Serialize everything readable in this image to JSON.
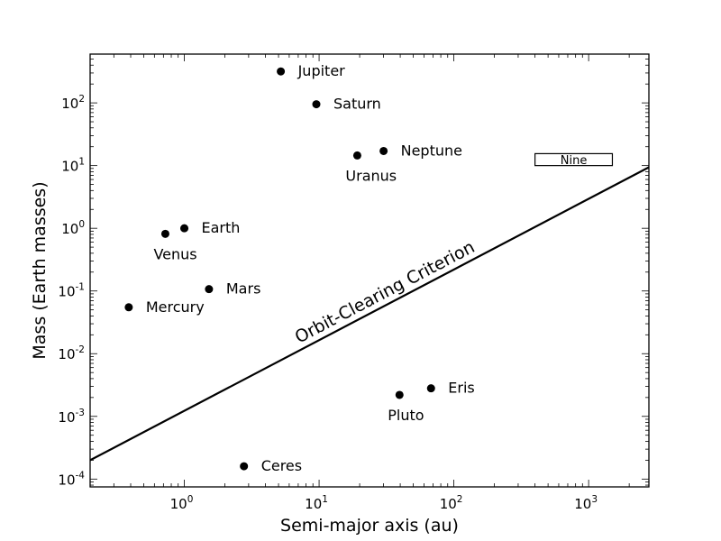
{
  "chart_data": {
    "type": "scatter",
    "xlabel": "Semi-major axis (au)",
    "ylabel": "Mass (Earth masses)",
    "xscale": "log",
    "yscale": "log",
    "xlim": [
      0.2,
      2800
    ],
    "ylim": [
      7.5e-05,
      600
    ],
    "xticks": [
      {
        "value": 1,
        "base": "10",
        "exp": "0"
      },
      {
        "value": 10,
        "base": "10",
        "exp": "1"
      },
      {
        "value": 100,
        "base": "10",
        "exp": "2"
      },
      {
        "value": 1000,
        "base": "10",
        "exp": "3"
      }
    ],
    "yticks": [
      {
        "value": 0.0001,
        "base": "10",
        "exp": "-4"
      },
      {
        "value": 0.001,
        "base": "10",
        "exp": "-3"
      },
      {
        "value": 0.01,
        "base": "10",
        "exp": "-2"
      },
      {
        "value": 0.1,
        "base": "10",
        "exp": "-1"
      },
      {
        "value": 1,
        "base": "10",
        "exp": "0"
      },
      {
        "value": 10,
        "base": "10",
        "exp": "1"
      },
      {
        "value": 100,
        "base": "10",
        "exp": "2"
      }
    ],
    "points": [
      {
        "name": "Mercury",
        "x": 0.387,
        "y": 0.055,
        "label_pos": "right"
      },
      {
        "name": "Venus",
        "x": 0.723,
        "y": 0.815,
        "label_pos": "below"
      },
      {
        "name": "Earth",
        "x": 1.0,
        "y": 1.0,
        "label_pos": "right"
      },
      {
        "name": "Mars",
        "x": 1.524,
        "y": 0.107,
        "label_pos": "right"
      },
      {
        "name": "Ceres",
        "x": 2.77,
        "y": 0.00016,
        "label_pos": "right"
      },
      {
        "name": "Jupiter",
        "x": 5.2,
        "y": 317.8,
        "label_pos": "right"
      },
      {
        "name": "Saturn",
        "x": 9.54,
        "y": 95.2,
        "label_pos": "right"
      },
      {
        "name": "Uranus",
        "x": 19.2,
        "y": 14.5,
        "label_pos": "below"
      },
      {
        "name": "Neptune",
        "x": 30.1,
        "y": 17.1,
        "label_pos": "right"
      },
      {
        "name": "Pluto",
        "x": 39.5,
        "y": 0.0022,
        "label_pos": "below"
      },
      {
        "name": "Eris",
        "x": 67.7,
        "y": 0.0028,
        "label_pos": "right"
      }
    ],
    "criterion_line": {
      "label": "Orbit-Clearing Criterion",
      "x": [
        0.2,
        2800
      ],
      "y": [
        0.0002,
        9.4
      ]
    },
    "region_box": {
      "label": "Nine",
      "x": [
        400,
        1500
      ],
      "y": [
        10,
        15.5
      ]
    }
  }
}
